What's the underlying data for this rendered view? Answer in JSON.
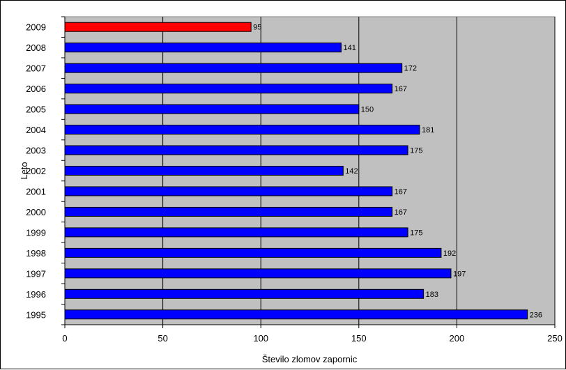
{
  "chart_data": {
    "type": "bar",
    "orientation": "horizontal",
    "title": "",
    "xlabel": "Število zlomov zapornic",
    "ylabel": "Leto",
    "xlim": [
      0,
      250
    ],
    "xticks": [
      0,
      50,
      100,
      150,
      200,
      250
    ],
    "xtick_labels": [
      "0",
      "50",
      "100",
      "150",
      "200",
      "250"
    ],
    "grid": "vertical",
    "legend": "none",
    "categories": [
      "2009",
      "2008",
      "2007",
      "2006",
      "2005",
      "2004",
      "2003",
      "2002",
      "2001",
      "2000",
      "1999",
      "1998",
      "1997",
      "1996",
      "1995"
    ],
    "values": [
      95,
      141,
      172,
      167,
      150,
      181,
      175,
      142,
      167,
      167,
      175,
      192,
      197,
      183,
      236
    ],
    "value_labels": [
      "95",
      "141",
      "172",
      "167",
      "150",
      "181",
      "175",
      "142",
      "167",
      "167",
      "175",
      "192",
      "197",
      "183",
      "236"
    ],
    "highlight_category": "2009",
    "colors": {
      "plot_background": "#c0c0c0",
      "bar": "#0000ff",
      "highlight_bar": "#ff0000",
      "gridline": "#000000",
      "bar_outline": "#000000"
    }
  }
}
